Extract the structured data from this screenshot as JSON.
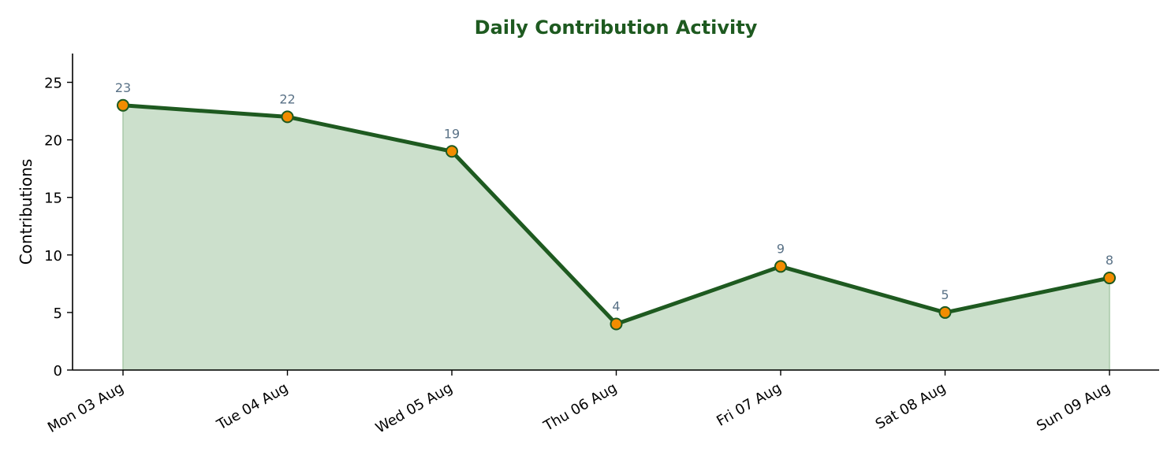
{
  "colors": {
    "title": "#1e5a20",
    "line": "#1e5a20",
    "area": "#cce0cc",
    "area_edge": "#a9c9a9",
    "marker_fill": "#f28c00",
    "marker_edge": "#1e5a20",
    "data_label": "#5a7287",
    "axis": "#000000"
  },
  "chart_data": {
    "type": "area",
    "title": "Daily Contribution Activity",
    "xlabel": "",
    "ylabel": "Contributions",
    "categories": [
      "Mon 03 Aug",
      "Tue 04 Aug",
      "Wed 05 Aug",
      "Thu 06 Aug",
      "Fri 07 Aug",
      "Sat 08 Aug",
      "Sun 09 Aug"
    ],
    "values": [
      23,
      22,
      19,
      4,
      9,
      5,
      8
    ],
    "ylim": [
      0,
      27.5
    ],
    "yticks": [
      0,
      5,
      10,
      15,
      20,
      25
    ],
    "data_labels": true,
    "markers": true,
    "grid": false,
    "legend": "none",
    "spines": "left-bottom"
  }
}
